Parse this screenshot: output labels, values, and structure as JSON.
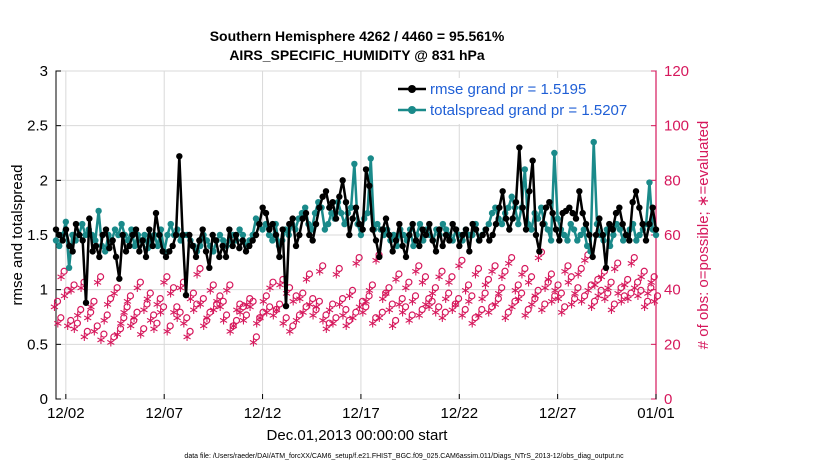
{
  "chart_data": {
    "type": "line",
    "title_line1": "Southern Hemisphere 4262 / 4460 = 95.561%",
    "title_line2": "AIRS_SPECIFIC_HUMIDITY @ 831 hPa",
    "xlabel": "Dec.01,2013 00:00:00 start",
    "ylabel_left": "rmse and totalspread",
    "ylabel_right": "# of obs: o=possible; ∗=evaluated",
    "footnote": "data file: /Users/raeder/DAI/ATM_forcXX/CAM6_setup/f.e21.FHIST_BGC.f09_025.CAM6assim.011/Diags_NTrS_2013-12/obs_diag_output.nc",
    "x_range_days": [
      0.5,
      31.0
    ],
    "ylim_left": [
      0,
      3
    ],
    "ylim_right": [
      0,
      120
    ],
    "yticks_left": [
      "0",
      "0.5",
      "1",
      "1.5",
      "2",
      "2.5",
      "3"
    ],
    "yticks_right": [
      "0",
      "20",
      "40",
      "60",
      "80",
      "100",
      "120"
    ],
    "xticks": [
      {
        "day": 1.0,
        "label": "12/02"
      },
      {
        "day": 6.0,
        "label": "12/07"
      },
      {
        "day": 11.0,
        "label": "12/12"
      },
      {
        "day": 16.0,
        "label": "12/17"
      },
      {
        "day": 21.0,
        "label": "12/22"
      },
      {
        "day": 26.0,
        "label": "12/27"
      },
      {
        "day": 31.0,
        "label": "01/01"
      }
    ],
    "colors": {
      "rmse": "#000000",
      "spread": "#1a8a8a",
      "obs": "#d6185c",
      "legend_text": "#1f5fd6"
    },
    "series": [
      {
        "name": "rmse grand pr = 1.5195",
        "color": "#000000",
        "values": [
          1.55,
          1.5,
          1.45,
          1.55,
          1.4,
          1.35,
          1.6,
          1.5,
          1.45,
          0.88,
          1.65,
          1.35,
          1.4,
          1.3,
          1.5,
          1.55,
          1.38,
          1.45,
          1.3,
          1.1,
          1.5,
          1.35,
          1.4,
          1.5,
          1.55,
          1.35,
          1.45,
          1.3,
          1.55,
          1.4,
          1.7,
          1.5,
          1.35,
          1.3,
          1.35,
          1.4,
          1.5,
          2.22,
          1.5,
          0.95,
          1.5,
          1.4,
          1.3,
          1.45,
          1.55,
          1.35,
          1.2,
          1.5,
          1.45,
          1.3,
          1.4,
          1.3,
          1.55,
          1.4,
          1.5,
          1.38,
          1.45,
          1.35,
          1.4,
          1.45,
          1.5,
          1.6,
          1.75,
          1.7,
          1.55,
          1.6,
          1.5,
          1.3,
          1.55,
          0.85,
          1.6,
          1.65,
          1.4,
          1.5,
          1.65,
          1.7,
          1.5,
          1.45,
          1.6,
          1.75,
          1.85,
          1.9,
          1.75,
          1.8,
          1.65,
          1.85,
          2.0,
          1.8,
          1.5,
          1.65,
          1.75,
          1.6,
          1.55,
          2.1,
          1.95,
          1.55,
          1.45,
          1.3,
          1.55,
          1.65,
          1.5,
          1.35,
          1.45,
          1.6,
          1.4,
          1.3,
          1.5,
          1.6,
          1.45,
          1.4,
          1.55,
          1.5,
          1.6,
          1.45,
          1.35,
          1.55,
          1.4,
          1.5,
          1.45,
          1.6,
          1.55,
          1.4,
          1.5,
          1.55,
          1.35,
          1.6,
          1.55,
          1.45,
          1.5,
          1.55,
          1.45,
          1.5,
          1.6,
          1.75,
          1.9,
          1.65,
          1.55,
          1.65,
          1.8,
          2.3,
          1.75,
          1.55,
          1.9,
          2.18,
          1.5,
          1.35,
          1.6,
          1.75,
          1.8,
          1.7,
          1.55,
          1.45,
          1.7,
          1.72,
          1.75,
          1.7,
          1.65,
          1.9,
          1.7,
          1.6,
          1.5,
          1.3,
          1.5,
          1.65,
          1.5,
          1.2,
          1.6,
          1.55,
          1.7,
          1.75,
          1.6,
          1.5,
          1.45,
          1.8,
          1.9,
          1.75,
          1.6,
          1.45,
          1.6,
          1.75,
          1.55
        ]
      },
      {
        "name": "totalspread grand pr = 1.5207",
        "color": "#1a8a8a",
        "values": [
          1.45,
          1.4,
          1.5,
          1.62,
          1.2,
          1.5,
          1.45,
          1.5,
          1.6,
          1.5,
          1.55,
          1.5,
          1.45,
          1.72,
          1.4,
          1.35,
          1.5,
          1.45,
          1.55,
          1.5,
          1.6,
          1.5,
          1.45,
          1.55,
          1.4,
          1.5,
          1.45,
          1.5,
          1.38,
          1.45,
          1.5,
          1.4,
          1.55,
          1.35,
          1.5,
          1.6,
          1.5,
          1.55,
          1.45,
          1.5,
          1.5,
          1.45,
          1.4,
          1.35,
          1.4,
          1.5,
          1.45,
          1.4,
          1.35,
          1.45,
          1.5,
          1.45,
          1.4,
          1.45,
          1.5,
          1.45,
          1.55,
          1.5,
          1.4,
          1.45,
          1.5,
          1.65,
          1.6,
          1.55,
          1.6,
          1.5,
          1.45,
          1.6,
          1.4,
          1.45,
          1.55,
          1.5,
          1.6,
          1.55,
          1.65,
          1.7,
          1.75,
          1.6,
          1.55,
          1.7,
          1.8,
          1.75,
          1.55,
          1.6,
          1.7,
          1.65,
          1.8,
          1.7,
          1.6,
          1.7,
          1.75,
          2.15,
          1.6,
          1.5,
          1.65,
          1.7,
          2.2,
          1.55,
          1.6,
          1.55,
          1.5,
          1.55,
          1.45,
          1.5,
          1.4,
          1.55,
          1.5,
          1.45,
          1.55,
          1.4,
          1.5,
          1.6,
          1.45,
          1.55,
          1.5,
          1.45,
          1.55,
          1.5,
          1.6,
          1.55,
          1.5,
          1.45,
          1.55,
          1.5,
          1.45,
          1.55,
          1.5,
          1.5,
          1.6,
          1.45,
          1.5,
          1.55,
          1.6,
          1.7,
          1.75,
          1.65,
          1.6,
          1.7,
          1.75,
          1.85,
          1.75,
          1.6,
          1.75,
          2.1,
          1.6,
          1.55,
          1.7,
          1.65,
          1.75,
          1.6,
          1.55,
          1.45,
          2.25,
          1.65,
          1.55,
          1.5,
          1.45,
          1.6,
          1.55,
          1.45,
          1.5,
          1.55,
          1.4,
          1.35,
          2.35,
          1.6,
          1.5,
          1.45,
          1.55,
          1.4,
          1.5,
          1.6,
          1.55,
          1.45,
          1.5,
          1.55,
          1.6,
          1.45,
          1.5,
          1.55,
          1.6,
          1.98,
          1.55,
          1.5
        ]
      },
      {
        "name": "obs possible",
        "color": "#d6185c",
        "marker": "o",
        "values": [
          35,
          29,
          46,
          39,
          28,
          41,
          27,
          32,
          42,
          24,
          31,
          35,
          26,
          44,
          23,
          30,
          36,
          22,
          40,
          25,
          29,
          33,
          37,
          28,
          31,
          42,
          25,
          34,
          38,
          30,
          27,
          36,
          33,
          44,
          26,
          40,
          33,
          31,
          42,
          29,
          24,
          38,
          34,
          47,
          36,
          28,
          31,
          41,
          34,
          37,
          35,
          30,
          41,
          26,
          28,
          34,
          33,
          30,
          36,
          35,
          22,
          29,
          31,
          37,
          33,
          42,
          32,
          34,
          43,
          29,
          40,
          26,
          37,
          30,
          38,
          33,
          45,
          36,
          32,
          35,
          48,
          30,
          27,
          34,
          29,
          47,
          36,
          32,
          28,
          39,
          31,
          51,
          35,
          33,
          37,
          41,
          29,
          52,
          31,
          38,
          40,
          34,
          28,
          45,
          36,
          33,
          42,
          30,
          37,
          48,
          32,
          44,
          36,
          35,
          40,
          33,
          46,
          31,
          38,
          44,
          34,
          36,
          50,
          32,
          41,
          37,
          29,
          47,
          32,
          38,
          43,
          33,
          48,
          36,
          40,
          46,
          31,
          51,
          35,
          41,
          38,
          47,
          32,
          44,
          36,
          39,
          53,
          34,
          42,
          45,
          37,
          41,
          38,
          33,
          48,
          44,
          36,
          40,
          47,
          37,
          52,
          41,
          35,
          43,
          39,
          46,
          38,
          42,
          34,
          49,
          40,
          37,
          43,
          38,
          51,
          42,
          39,
          46,
          35,
          40,
          44,
          37
        ]
      },
      {
        "name": "obs evaluated",
        "color": "#d6185c",
        "marker": "*",
        "values": [
          34,
          28,
          45,
          38,
          27,
          40,
          26,
          31,
          41,
          23,
          30,
          34,
          25,
          43,
          22,
          29,
          35,
          21,
          39,
          24,
          28,
          32,
          36,
          27,
          30,
          41,
          24,
          33,
          37,
          29,
          26,
          35,
          32,
          43,
          25,
          39,
          32,
          30,
          41,
          28,
          23,
          37,
          33,
          46,
          35,
          27,
          30,
          40,
          33,
          36,
          34,
          29,
          40,
          25,
          27,
          33,
          32,
          29,
          35,
          34,
          21,
          28,
          30,
          36,
          32,
          41,
          31,
          33,
          42,
          28,
          39,
          25,
          36,
          29,
          37,
          32,
          44,
          35,
          31,
          34,
          47,
          29,
          26,
          33,
          28,
          46,
          35,
          31,
          27,
          38,
          30,
          50,
          34,
          32,
          36,
          40,
          28,
          51,
          30,
          37,
          39,
          33,
          27,
          44,
          35,
          32,
          41,
          29,
          36,
          47,
          31,
          43,
          35,
          34,
          39,
          32,
          45,
          30,
          37,
          43,
          33,
          35,
          49,
          31,
          40,
          36,
          28,
          46,
          31,
          37,
          42,
          32,
          47,
          35,
          39,
          45,
          30,
          50,
          34,
          40,
          37,
          46,
          31,
          43,
          35,
          38,
          52,
          33,
          41,
          44,
          36,
          40,
          37,
          32,
          47,
          43,
          35,
          39,
          46,
          36,
          51,
          40,
          34,
          42,
          38,
          45,
          37,
          41,
          33,
          48,
          39,
          36,
          42,
          37,
          50,
          41,
          38,
          45,
          34,
          39,
          43,
          36
        ]
      }
    ],
    "legend": [
      {
        "label": "rmse grand pr = 1.5195",
        "color": "#000000"
      },
      {
        "label": "totalspread grand pr = 1.5207",
        "color": "#1a8a8a"
      }
    ]
  }
}
